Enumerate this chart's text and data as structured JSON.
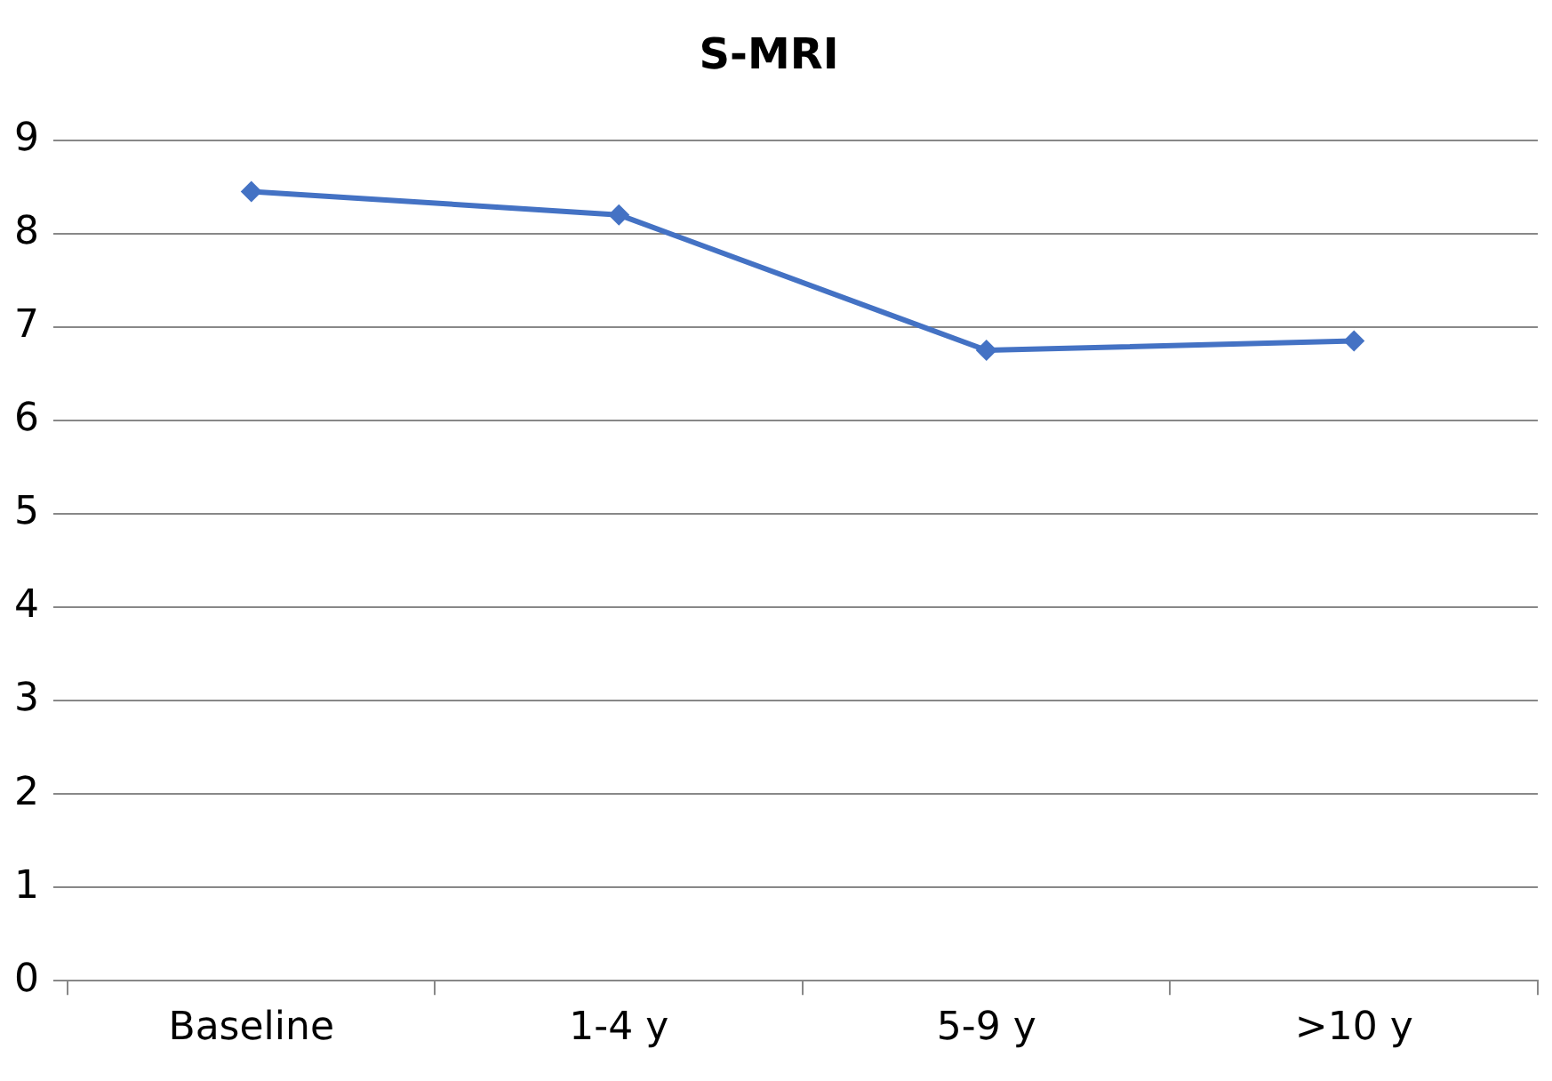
{
  "chart_data": {
    "type": "line",
    "title": "S-MRI",
    "categories": [
      "Baseline",
      "1-4 y",
      "5-9 y",
      ">10 y"
    ],
    "series": [
      {
        "color": "#4472c4",
        "values": [
          8.45,
          8.2,
          6.75,
          6.85
        ]
      }
    ],
    "ylim": [
      0,
      9
    ],
    "yticks": [
      0,
      1,
      2,
      3,
      4,
      5,
      6,
      7,
      8,
      9
    ],
    "grid": "y",
    "legend": false,
    "marker": "diamond",
    "line_style": "solid"
  }
}
